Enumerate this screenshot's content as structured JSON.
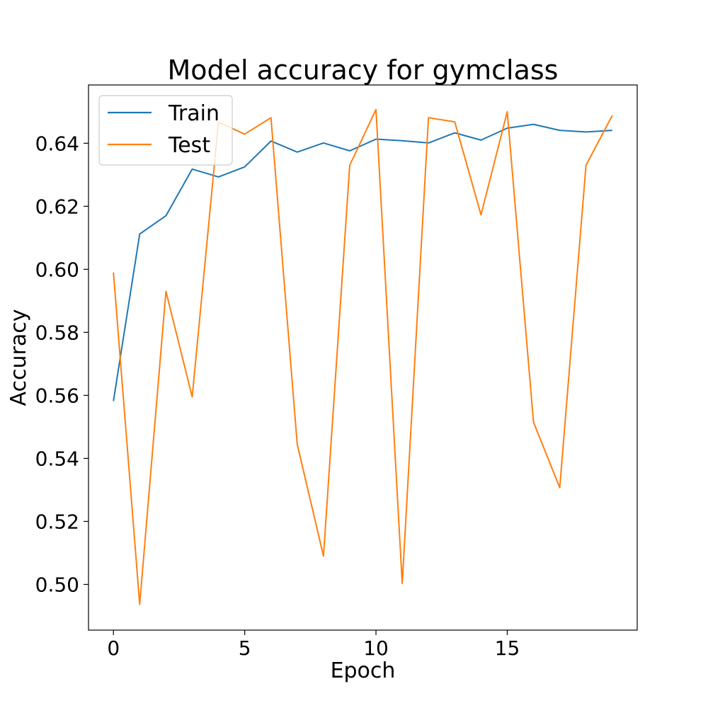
{
  "chart_data": {
    "type": "line",
    "title": "Model accuracy for gymclass",
    "xlabel": "Epoch",
    "ylabel": "Accuracy",
    "xlim": [
      -0.95,
      19.95
    ],
    "ylim": [
      0.4855,
      0.6585
    ],
    "x_ticks": [
      0,
      5,
      10,
      15
    ],
    "x_tick_labels": [
      "0",
      "5",
      "10",
      "15"
    ],
    "y_ticks": [
      0.5,
      0.52,
      0.54,
      0.56,
      0.58,
      0.6,
      0.62,
      0.64
    ],
    "y_tick_labels": [
      "0.50",
      "0.52",
      "0.54",
      "0.56",
      "0.58",
      "0.60",
      "0.62",
      "0.64"
    ],
    "grid": false,
    "legend_position": "top-left",
    "x": [
      0,
      1,
      2,
      3,
      4,
      5,
      6,
      7,
      8,
      9,
      10,
      11,
      12,
      13,
      14,
      15,
      16,
      17,
      18,
      19
    ],
    "series": [
      {
        "name": "Train",
        "color": "#1f77b4",
        "values": [
          0.5582,
          0.6112,
          0.617,
          0.6318,
          0.6293,
          0.6325,
          0.6407,
          0.6372,
          0.6401,
          0.6376,
          0.6413,
          0.6408,
          0.6401,
          0.6433,
          0.641,
          0.6448,
          0.646,
          0.6441,
          0.6436,
          0.6441
        ]
      },
      {
        "name": "Test",
        "color": "#ff7f0e",
        "values": [
          0.599,
          0.4937,
          0.593,
          0.5595,
          0.6467,
          0.6429,
          0.6481,
          0.5445,
          0.509,
          0.633,
          0.6507,
          0.5003,
          0.6481,
          0.6468,
          0.6173,
          0.65,
          0.5515,
          0.5307,
          0.633,
          0.6488
        ]
      }
    ]
  }
}
